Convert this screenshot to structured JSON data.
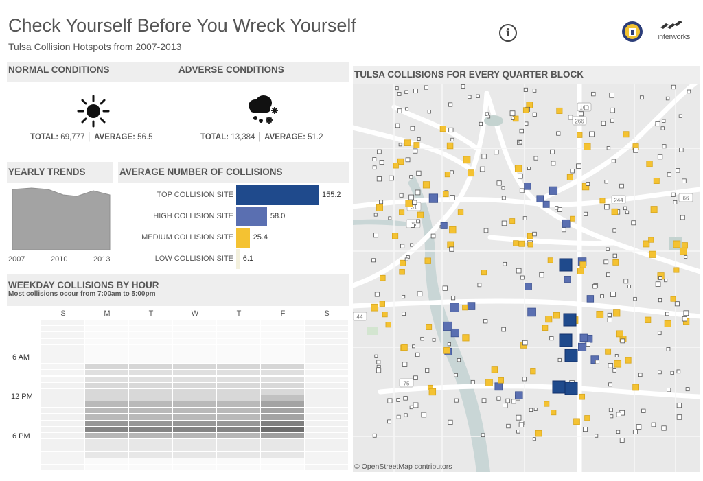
{
  "header": {
    "title": "Check Yourself Before You Wreck Yourself",
    "subtitle": "Tulsa Collision Hotspots from 2007-2013",
    "info_icon": "info-icon",
    "logos": [
      "city-seal-logo",
      "interworks-logo"
    ],
    "interworks_text": "interworks"
  },
  "conditions": {
    "normal": {
      "title": "NORMAL CONDITIONS",
      "icon": "sun-icon",
      "total_label": "TOTAL:",
      "total": "69,777",
      "avg_label": "AVERAGE:",
      "average": "56.5"
    },
    "adverse": {
      "title": "ADVERSE CONDITIONS",
      "icon": "storm-cloud-icon",
      "total_label": "TOTAL:",
      "total": "13,384",
      "avg_label": "AVERAGE:",
      "average": "51.2"
    }
  },
  "yearly": {
    "title": "YEARLY TRENDS",
    "x_labels": [
      "2007",
      "2010",
      "2013"
    ],
    "color": "#a3a3a3"
  },
  "avg_collisions": {
    "title": "AVERAGE NUMBER OF COLLISIONS",
    "rows": [
      {
        "label": "TOP COLLISION SITE",
        "value": 155.2,
        "value_text": "155.2",
        "color": "#1f4a8c"
      },
      {
        "label": "HIGH COLLISION SITE",
        "value": 58.0,
        "value_text": "58.0",
        "color": "#5a6fb1"
      },
      {
        "label": "MEDIUM COLLISION SITE",
        "value": 25.4,
        "value_text": "25.4",
        "color": "#f4c232"
      },
      {
        "label": "LOW COLLISION SITE",
        "value": 6.1,
        "value_text": "6.1",
        "color": "#f3f0dc"
      }
    ]
  },
  "weekday": {
    "title": "WEEKDAY COLLISIONS BY HOUR",
    "subtitle": "Most collisions occur from 7:00am to 5:00pm",
    "days": [
      "S",
      "M",
      "T",
      "W",
      "T",
      "F",
      "S"
    ],
    "hour_labels": [
      "6 AM",
      "12 PM",
      "6 PM"
    ]
  },
  "map": {
    "title": "TULSA COLLISIONS FOR EVERY QUARTER BLOCK",
    "attribution": "© OpenStreetMap contributors",
    "highway_shields": [
      "169",
      "266",
      "75",
      "44",
      "244",
      "66",
      "75",
      "51"
    ]
  },
  "colors": {
    "top": "#1f4a8c",
    "high": "#5a6fb1",
    "medium": "#f4c232",
    "low": "#ffffff",
    "river": "#c9d6d6",
    "road": "#ffffff",
    "land": "#e9e9e9"
  }
}
